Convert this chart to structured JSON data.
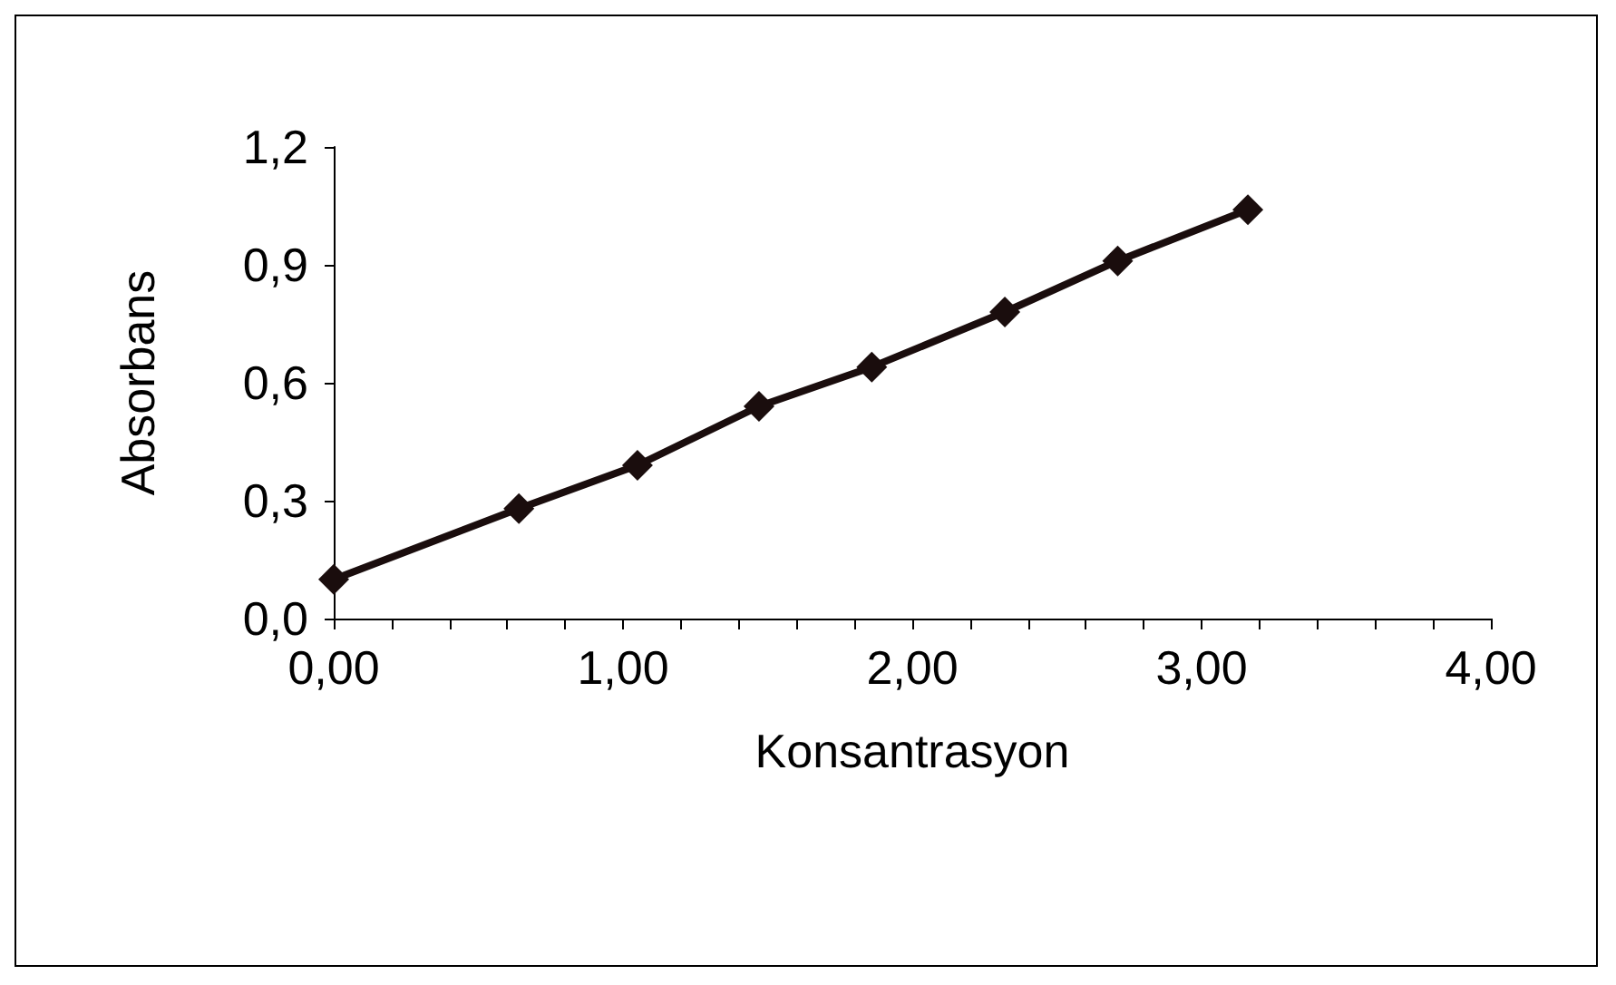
{
  "chart_data": {
    "type": "line",
    "xlabel": "Konsantrasyon",
    "ylabel": "Absorbans",
    "x": [
      0,
      0.64,
      1.05,
      1.47,
      1.86,
      2.32,
      2.71,
      3.16
    ],
    "series": [
      {
        "color": "#1a0d0d",
        "values": [
          0.1,
          0.28,
          0.39,
          0.54,
          0.64,
          0.78,
          0.91,
          1.04
        ]
      }
    ],
    "xlim": [
      0,
      4
    ],
    "xticks": [
      {
        "value": 0,
        "label": "0,00"
      },
      {
        "value": 0.2,
        "label": null
      },
      {
        "value": 0.4,
        "label": null
      },
      {
        "value": 0.6,
        "label": null
      },
      {
        "value": 0.8,
        "label": null
      },
      {
        "value": 1,
        "label": "1,00"
      },
      {
        "value": 1.2,
        "label": null
      },
      {
        "value": 1.4,
        "label": null
      },
      {
        "value": 1.6,
        "label": null
      },
      {
        "value": 1.8,
        "label": null
      },
      {
        "value": 2,
        "label": "2,00"
      },
      {
        "value": 2.2,
        "label": null
      },
      {
        "value": 2.4,
        "label": null
      },
      {
        "value": 2.6,
        "label": null
      },
      {
        "value": 2.8,
        "label": null
      },
      {
        "value": 3,
        "label": "3,00"
      },
      {
        "value": 3.2,
        "label": null
      },
      {
        "value": 3.4,
        "label": null
      },
      {
        "value": 3.6,
        "label": null
      },
      {
        "value": 3.8,
        "label": null
      },
      {
        "value": 4,
        "label": "4,00"
      }
    ],
    "ylim": [
      0,
      1.2
    ],
    "yticks": [
      {
        "value": 0,
        "label": "0,0"
      },
      {
        "value": 0.3,
        "label": "0,3"
      },
      {
        "value": 0.6,
        "label": "0,6"
      },
      {
        "value": 0.9,
        "label": "0,9"
      },
      {
        "value": 1.2,
        "label": "1,2"
      }
    ],
    "grid": false,
    "marker": "diamond",
    "line_style": "solid"
  }
}
